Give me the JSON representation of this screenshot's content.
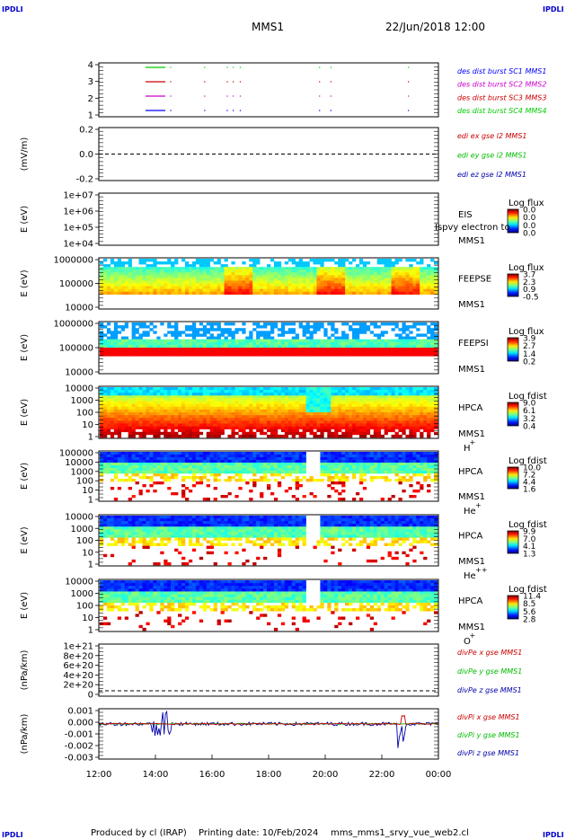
{
  "header": {
    "corner_tl": "IPDLI",
    "corner_tr": "IPDLI",
    "corner_bl": "IPDLI",
    "corner_br": "IPDLI",
    "spacecraft": "MMS1",
    "datetime": "22/Jun/2018 12:00"
  },
  "footer": {
    "produced": "Produced by cl (IRAP)",
    "printing": "Printing date: 10/Feb/2024",
    "script": "mms_mms1_srvy_vue_web2.cl"
  },
  "colors": {
    "blue": "#0000ff",
    "red": "#ff0000",
    "magenta": "#cc00cc",
    "green": "#00cc00",
    "dark_blue": "#0000aa",
    "dark_red": "#cc0000",
    "dark_green": "#00bb00"
  },
  "chart_data": {
    "type": "multi-panel",
    "x_ticks": [
      "12:00",
      "14:00",
      "16:00",
      "18:00",
      "20:00",
      "22:00",
      "00:00"
    ],
    "x_range_hours": [
      12,
      24
    ],
    "panels": [
      {
        "id": "burst",
        "type": "timeline",
        "y_ticks": [
          "4",
          "3",
          "2",
          "1"
        ],
        "ylabel": "",
        "legend": [
          {
            "label": "des dist burst SC1 MMS1",
            "color": "#0000ff"
          },
          {
            "label": "des dist burst SC2 MMS2",
            "color": "#cc00cc"
          },
          {
            "label": "des dist burst SC3 MMS3",
            "color": "#cc0000"
          },
          {
            "label": "des dist burst SC4 MMS4",
            "color": "#00cc00"
          }
        ],
        "intervals_hours": [
          [
            13.65,
            14.35
          ],
          [
            14.52,
            14.56
          ],
          [
            15.72,
            15.76
          ],
          [
            16.52,
            16.56
          ],
          [
            16.73,
            16.77
          ],
          [
            16.98,
            17.02
          ],
          [
            19.78,
            19.82
          ],
          [
            20.18,
            20.22
          ],
          [
            22.92,
            22.96
          ]
        ]
      },
      {
        "id": "edi",
        "type": "line",
        "ylabel": "(mV/m)",
        "y_ticks": [
          "0.2",
          "0.0",
          "-0.2"
        ],
        "dashed_zero": true,
        "legend": [
          {
            "label": "edi ex gse l2 MMS1",
            "color": "#cc0000"
          },
          {
            "label": "edi ey gse l2 MMS1",
            "color": "#00bb00"
          },
          {
            "label": "edi ez gse l2 MMS1",
            "color": "#0000aa"
          }
        ]
      },
      {
        "id": "eis",
        "type": "spectrogram",
        "ylabel": "E (eV)",
        "y_ticks": [
          "1e+07",
          "1e+06",
          "1e+05",
          "1e+04"
        ],
        "instrument": "EIS",
        "spacecraft": "MMS1",
        "overlay_text": "Ispvy electron to",
        "colorbar_title": "Log flux",
        "colorbar_ticks": [
          "0.0",
          "0.0",
          "0.0",
          "0.0"
        ],
        "empty": true
      },
      {
        "id": "feepse",
        "type": "spectrogram",
        "ylabel": "E (eV)",
        "y_ticks": [
          "1000000",
          "100000",
          "10000"
        ],
        "instrument": "FEEPSE",
        "spacecraft": "MMS1",
        "colorbar_title": "Log flux",
        "colorbar_ticks": [
          "3.7",
          "2.3",
          "0.9",
          "-0.5"
        ]
      },
      {
        "id": "feepsi",
        "type": "spectrogram",
        "ylabel": "E (eV)",
        "y_ticks": [
          "1000000",
          "100000",
          "10000"
        ],
        "instrument": "FEEPSI",
        "spacecraft": "MMS1",
        "colorbar_title": "Log flux",
        "colorbar_ticks": [
          "3.9",
          "2.7",
          "1.4",
          "0.2"
        ]
      },
      {
        "id": "hpca_h",
        "type": "spectrogram",
        "ylabel": "E (eV)",
        "y_ticks": [
          "10000",
          "1000",
          "100",
          "10",
          "1"
        ],
        "instrument": "HPCA",
        "spacecraft": "MMS1",
        "species": "H",
        "charge": "+",
        "colorbar_title": "Log fdist",
        "colorbar_ticks": [
          "9.0",
          "6.1",
          "3.2",
          "0.4"
        ]
      },
      {
        "id": "hpca_he",
        "type": "spectrogram",
        "ylabel": "E (eV)",
        "y_ticks": [
          "100000",
          "10000",
          "1000",
          "100",
          "10",
          "1"
        ],
        "instrument": "HPCA",
        "spacecraft": "MMS1",
        "species": "He",
        "charge": "+",
        "colorbar_title": "Log fdist",
        "colorbar_ticks": [
          "10.0",
          "7.2",
          "4.4",
          "1.6"
        ]
      },
      {
        "id": "hpca_hepp",
        "type": "spectrogram",
        "ylabel": "E (eV)",
        "y_ticks": [
          "10000",
          "1000",
          "100",
          "10",
          "1"
        ],
        "instrument": "HPCA",
        "spacecraft": "MMS1",
        "species": "He",
        "charge": "++",
        "colorbar_title": "Log fdist",
        "colorbar_ticks": [
          "9.9",
          "7.0",
          "4.1",
          "1.3"
        ]
      },
      {
        "id": "hpca_o",
        "type": "spectrogram",
        "ylabel": "E (eV)",
        "y_ticks": [
          "10000",
          "1000",
          "100",
          "10",
          "1"
        ],
        "instrument": "HPCA",
        "spacecraft": "MMS1",
        "species": "O",
        "charge": "+",
        "colorbar_title": "Log fdist",
        "colorbar_ticks": [
          "11.4",
          "8.5",
          "5.6",
          "2.8"
        ]
      },
      {
        "id": "divpe",
        "type": "line",
        "ylabel": "(nPa/km)",
        "y_ticks": [
          "1e+21",
          "8e+20",
          "6e+20",
          "4e+20",
          "2e+20",
          "0"
        ],
        "dashed_zero": true,
        "legend": [
          {
            "label": "divPe x gse MMS1",
            "color": "#cc0000"
          },
          {
            "label": "divPe y gse MMS1",
            "color": "#00bb00"
          },
          {
            "label": "divPe z gse MMS1",
            "color": "#0000aa"
          }
        ]
      },
      {
        "id": "divpi",
        "type": "line",
        "ylabel": "(nPa/km)",
        "y_ticks": [
          "0.001",
          "0.000",
          "-0.001",
          "-0.002",
          "-0.003"
        ],
        "y_range": [
          -0.0035,
          0.0015
        ],
        "legend": [
          {
            "label": "divPi x gse MMS1",
            "color": "#cc0000"
          },
          {
            "label": "divPi y gse MMS1",
            "color": "#00bb00"
          },
          {
            "label": "divPi z gse MMS1",
            "color": "#0000aa"
          }
        ]
      }
    ]
  }
}
